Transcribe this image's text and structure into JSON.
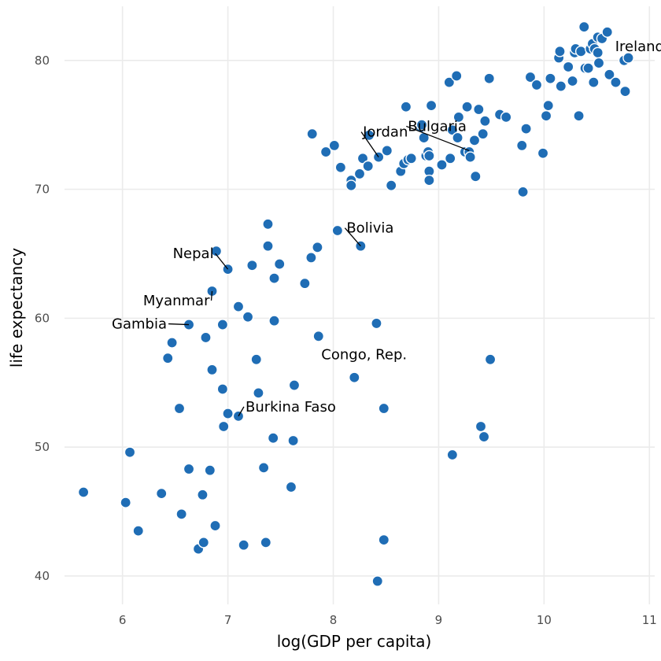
{
  "chart_data": {
    "type": "scatter",
    "title": "",
    "xlabel": "log(GDP per capita)",
    "ylabel": "life expectancy",
    "xlim": [
      5.45,
      11.05
    ],
    "ylim": [
      37.8,
      84.2
    ],
    "x_ticks": [
      6,
      7,
      8,
      9,
      10,
      11
    ],
    "y_ticks": [
      40,
      50,
      60,
      70,
      80
    ],
    "grid": true,
    "point_color": "#1f6db5",
    "points": [
      [
        5.63,
        46.5
      ],
      [
        6.03,
        45.7
      ],
      [
        6.07,
        49.6
      ],
      [
        6.15,
        43.5
      ],
      [
        6.37,
        46.4
      ],
      [
        6.43,
        56.9
      ],
      [
        6.47,
        58.1
      ],
      [
        6.54,
        53.0
      ],
      [
        6.56,
        44.8
      ],
      [
        6.63,
        48.3
      ],
      [
        6.63,
        59.5
      ],
      [
        6.72,
        42.1
      ],
      [
        6.76,
        46.3
      ],
      [
        6.77,
        42.6
      ],
      [
        6.79,
        58.5
      ],
      [
        6.83,
        48.2
      ],
      [
        6.85,
        62.1
      ],
      [
        6.85,
        56.0
      ],
      [
        6.88,
        43.9
      ],
      [
        6.89,
        65.2
      ],
      [
        6.95,
        54.5
      ],
      [
        6.95,
        59.5
      ],
      [
        6.96,
        51.6
      ],
      [
        7.0,
        52.6
      ],
      [
        7.0,
        63.8
      ],
      [
        7.1,
        60.9
      ],
      [
        7.1,
        52.4
      ],
      [
        7.15,
        42.4
      ],
      [
        7.19,
        60.1
      ],
      [
        7.23,
        64.1
      ],
      [
        7.27,
        56.8
      ],
      [
        7.29,
        54.2
      ],
      [
        7.34,
        48.4
      ],
      [
        7.36,
        42.6
      ],
      [
        7.38,
        67.3
      ],
      [
        7.38,
        65.6
      ],
      [
        7.43,
        50.7
      ],
      [
        7.44,
        59.8
      ],
      [
        7.44,
        63.1
      ],
      [
        7.49,
        64.2
      ],
      [
        7.6,
        46.9
      ],
      [
        7.62,
        50.5
      ],
      [
        7.63,
        54.8
      ],
      [
        7.73,
        62.7
      ],
      [
        7.79,
        64.7
      ],
      [
        7.8,
        74.3
      ],
      [
        7.85,
        65.5
      ],
      [
        7.86,
        58.6
      ],
      [
        7.93,
        72.9
      ],
      [
        8.01,
        73.4
      ],
      [
        8.04,
        66.8
      ],
      [
        8.07,
        71.7
      ],
      [
        8.17,
        70.7
      ],
      [
        8.17,
        70.3
      ],
      [
        8.2,
        55.4
      ],
      [
        8.25,
        71.2
      ],
      [
        8.26,
        65.6
      ],
      [
        8.28,
        72.4
      ],
      [
        8.33,
        71.8
      ],
      [
        8.34,
        74.2
      ],
      [
        8.41,
        59.6
      ],
      [
        8.42,
        39.6
      ],
      [
        8.43,
        72.5
      ],
      [
        8.48,
        53.0
      ],
      [
        8.48,
        42.8
      ],
      [
        8.51,
        73.0
      ],
      [
        8.55,
        70.3
      ],
      [
        8.64,
        71.4
      ],
      [
        8.67,
        72.0
      ],
      [
        8.69,
        76.4
      ],
      [
        8.71,
        72.3
      ],
      [
        8.74,
        72.4
      ],
      [
        8.83,
        74.8
      ],
      [
        8.84,
        75.0
      ],
      [
        8.86,
        74.0
      ],
      [
        8.88,
        72.6
      ],
      [
        8.9,
        72.9
      ],
      [
        8.91,
        72.6
      ],
      [
        8.91,
        71.4
      ],
      [
        8.91,
        70.7
      ],
      [
        8.93,
        76.5
      ],
      [
        9.03,
        71.9
      ],
      [
        9.1,
        78.3
      ],
      [
        9.11,
        72.4
      ],
      [
        9.13,
        74.6
      ],
      [
        9.13,
        49.4
      ],
      [
        9.17,
        78.8
      ],
      [
        9.18,
        74.0
      ],
      [
        9.19,
        75.6
      ],
      [
        9.25,
        72.9
      ],
      [
        9.27,
        76.4
      ],
      [
        9.29,
        72.9
      ],
      [
        9.3,
        72.5
      ],
      [
        9.34,
        73.8
      ],
      [
        9.35,
        71.0
      ],
      [
        9.38,
        76.2
      ],
      [
        9.4,
        51.6
      ],
      [
        9.42,
        74.3
      ],
      [
        9.43,
        50.8
      ],
      [
        9.44,
        75.3
      ],
      [
        9.48,
        78.6
      ],
      [
        9.49,
        56.8
      ],
      [
        9.58,
        75.8
      ],
      [
        9.64,
        75.6
      ],
      [
        9.8,
        69.8
      ],
      [
        9.79,
        73.4
      ],
      [
        9.83,
        74.7
      ],
      [
        9.87,
        78.7
      ],
      [
        9.93,
        78.1
      ],
      [
        9.99,
        72.8
      ],
      [
        10.02,
        75.7
      ],
      [
        10.04,
        76.5
      ],
      [
        10.06,
        78.6
      ],
      [
        10.14,
        80.2
      ],
      [
        10.15,
        80.7
      ],
      [
        10.16,
        78.0
      ],
      [
        10.23,
        79.5
      ],
      [
        10.27,
        78.4
      ],
      [
        10.29,
        80.6
      ],
      [
        10.3,
        80.9
      ],
      [
        10.33,
        75.7
      ],
      [
        10.35,
        80.7
      ],
      [
        10.38,
        82.6
      ],
      [
        10.39,
        79.4
      ],
      [
        10.42,
        79.4
      ],
      [
        10.44,
        80.9
      ],
      [
        10.46,
        81.3
      ],
      [
        10.47,
        78.3
      ],
      [
        10.48,
        80.9
      ],
      [
        10.51,
        81.8
      ],
      [
        10.51,
        80.6
      ],
      [
        10.52,
        79.8
      ],
      [
        10.55,
        81.7
      ],
      [
        10.6,
        82.2
      ],
      [
        10.62,
        78.9
      ],
      [
        10.68,
        78.3
      ],
      [
        10.76,
        80.0
      ],
      [
        10.77,
        77.6
      ],
      [
        10.8,
        80.2
      ]
    ],
    "annotations": [
      {
        "label": "Ireland",
        "x": 10.6,
        "y": 79.5
      },
      {
        "label": "Jordan",
        "x": 8.43,
        "y": 72.5
      },
      {
        "label": "Bulgaria",
        "x": 9.29,
        "y": 73.0
      },
      {
        "label": "Bolivia",
        "x": 8.26,
        "y": 65.6
      },
      {
        "label": "Nepal",
        "x": 7.0,
        "y": 63.8
      },
      {
        "label": "Myanmar",
        "x": 6.85,
        "y": 62.1
      },
      {
        "label": "Gambia",
        "x": 6.63,
        "y": 59.5
      },
      {
        "label": "Congo, Rep.",
        "x": 8.2,
        "y": 55.4
      },
      {
        "label": "Burkina Faso",
        "x": 7.1,
        "y": 52.4
      }
    ]
  }
}
